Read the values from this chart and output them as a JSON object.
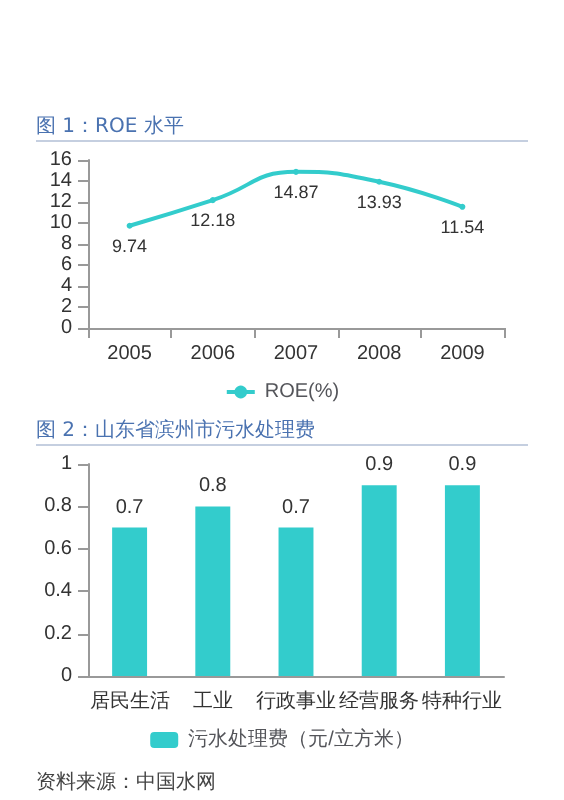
{
  "chart_data": [
    {
      "type": "line",
      "title": "图 1：ROE 水平",
      "categories": [
        "2005",
        "2006",
        "2007",
        "2008",
        "2009"
      ],
      "series": [
        {
          "name": "ROE(%)",
          "color": "#33cccc",
          "values": [
            9.74,
            12.18,
            14.87,
            13.93,
            11.54
          ]
        }
      ],
      "ylim": [
        0,
        16
      ],
      "yticks": [
        0,
        2,
        4,
        6,
        8,
        10,
        12,
        14,
        16
      ],
      "grid": false,
      "legend": "bottom",
      "data_labels": true,
      "marker": "circle"
    },
    {
      "type": "bar",
      "title": "图 2：山东省滨州市污水处理费",
      "categories": [
        "居民生活",
        "工业",
        "行政事业",
        "经营服务",
        "特种行业"
      ],
      "series": [
        {
          "name": "污水处理费（元/立方米）",
          "color": "#33cccc",
          "values": [
            0.7,
            0.8,
            0.7,
            0.9,
            0.9
          ]
        }
      ],
      "ylim": [
        0,
        1
      ],
      "yticks": [
        0,
        0.2,
        0.4,
        0.6,
        0.8,
        1
      ],
      "grid": false,
      "legend": "bottom",
      "data_labels": true,
      "annotations": [
        "资料来源：中国水网"
      ]
    }
  ]
}
